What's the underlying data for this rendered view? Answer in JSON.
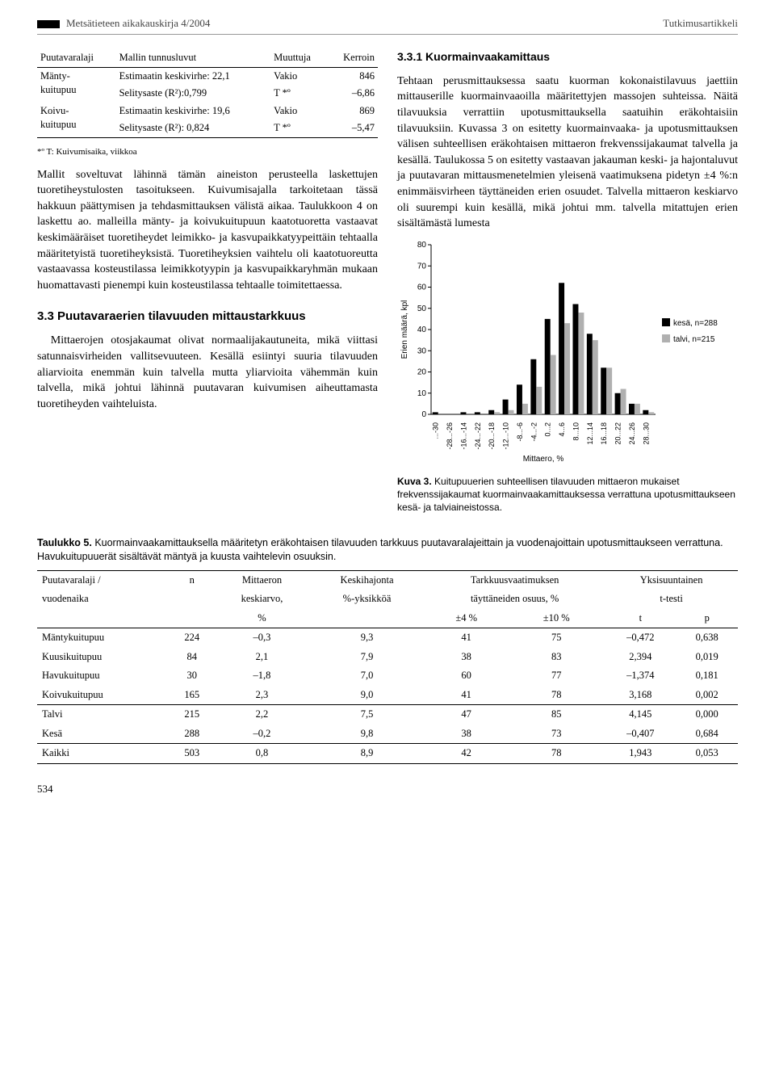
{
  "header": {
    "left": "Metsätieteen aikakauskirja 4/2004",
    "right": "Tutkimusartikkeli"
  },
  "miniTable": {
    "headers": [
      "Puutavaralaji",
      "Mallin tunnusluvut",
      "Muuttuja",
      "Kerroin"
    ],
    "rows": [
      {
        "c0": "Mänty-\nkuitupuu",
        "c1a": "Estimaatin keskivirhe: 22,1",
        "c1b": "Selitysaste (R²):0,799",
        "c2a": "Vakio",
        "c2b": "T *º",
        "c3a": "846",
        "c3b": "–6,86"
      },
      {
        "c0": "Koivu-\nkuitupuu",
        "c1a": "Estimaatin keskivirhe: 19,6",
        "c1b": "Selitysaste (R²): 0,824",
        "c2a": "Vakio",
        "c2b": "T *º",
        "c3a": "869",
        "c3b": "–5,47"
      }
    ],
    "footnote": "*º T: Kuivumisaika, viikkoa"
  },
  "left": {
    "p1": "Mallit soveltuvat lähinnä tämän aineiston perusteella laskettujen tuoretiheystulosten tasoitukseen. Kuivumisajalla tarkoitetaan tässä hakkuun päättymisen ja tehdasmittauksen välistä aikaa. Taulukkoon 4 on laskettu ao. malleilla mänty- ja koivukuitupuun kaatotuoretta vastaavat keskimääräiset tuoretiheydet leimikko- ja kasvupaikkatyypeittäin tehtaalla määritetyistä tuoretiheyksistä. Tuoretiheyksien vaihtelu oli kaatotuoreutta vastaavassa kosteustilassa leimikkotyypin ja kasvupaikkaryhmän mukaan huomattavasti pienempi kuin kosteustilassa tehtaalle toimitettaessa.",
    "h3": "3.3 Puutavaraerien tilavuuden mittaustarkkuus",
    "p2": "Mittaerojen otosjakaumat olivat normaalijakautuneita, mikä viittasi satunnaisvirheiden vallitsevuuteen. Kesällä esiintyi suuria tilavuuden aliarvioita enemmän kuin talvella mutta yliarvioita vähemmän kuin talvella, mikä johtui lähinnä puutavaran kuivumisen aiheuttamasta tuoretiheyden vaihteluista."
  },
  "right": {
    "h4": "3.3.1 Kuormainvaakamittaus",
    "p1": "Tehtaan perusmittauksessa saatu kuorman kokonaistilavuus jaettiin mittauserille kuormainvaaoilla määritettyjen massojen suhteissa. Näitä tilavuuksia verrattiin upotusmittauksella saatuihin eräkohtaisiin tilavuuksiin. Kuvassa 3 on esitetty kuormainvaaka- ja upotusmittauksen välisen suhteellisen eräkohtaisen mittaeron frekvenssijakaumat talvella ja kesällä. Taulukossa 5 on esitetty vastaavan jakauman keski- ja hajontaluvut ja puutavaran mittausmenetelmien yleisenä vaatimuksena pidetyn ±4 %:n enimmäisvirheen täyttäneiden erien osuudet. Talvella mittaeron keskiarvo oli suurempi kuin kesällä, mikä johtui mm. talvella mitattujen erien sisältämästä lumesta"
  },
  "chart": {
    "type": "grouped-bar-histogram",
    "ylabel": "Erien määrä, kpl",
    "xlabel": "Mittaero, %",
    "ylim": [
      0,
      80
    ],
    "ytick_step": 10,
    "categories": [
      "...-30",
      "-28...-26",
      "-16...-14",
      "-24...-22",
      "-20...-18",
      "-12...-10",
      "-8...-6",
      "-4...-2",
      "0...2",
      "4...6",
      "8...10",
      "12...14",
      "16...18",
      "20...22",
      "24...26",
      "28...30"
    ],
    "series": [
      {
        "name": "kesä, n=288",
        "color": "#000000",
        "values": [
          1,
          0,
          1,
          1,
          2,
          7,
          14,
          26,
          45,
          62,
          52,
          38,
          22,
          10,
          5,
          2
        ]
      },
      {
        "name": "talvi, n=215",
        "color": "#b0b0b0",
        "values": [
          0,
          0,
          0,
          0,
          1,
          2,
          5,
          13,
          28,
          43,
          48,
          35,
          22,
          12,
          5,
          1
        ]
      }
    ],
    "background_color": "#ffffff",
    "axis_color": "#000000",
    "label_fontsize": 10,
    "bar_group_width": 0.8
  },
  "chartCaption": {
    "bold": "Kuva 3.",
    "text": " Kuitupuuerien suhteellisen tilavuuden mittaeron mukaiset frekvenssijakaumat kuormainvaakamittauksessa verrattuna upotusmittaukseen kesä- ja talviaineistossa."
  },
  "table5": {
    "captionBold": "Taulukko 5.",
    "caption": " Kuormainvaakamittauksella määritetyn eräkohtaisen tilavuuden tarkkuus puutavaralajeittain ja vuodenajoittain upotusmittaukseen verrattuna. Havukuitupuuerät sisältävät mäntyä ja kuusta vaihtelevin osuuksin.",
    "head1": [
      "Puutavaralaji /",
      "n",
      "Mittaeron",
      "Keskihajonta",
      "Tarkkuusvaatimuksen",
      "",
      "Yksisuuntainen",
      ""
    ],
    "head2": [
      "vuodenaika",
      "",
      "keskiarvo,",
      "%-yksikköä",
      "täyttäneiden osuus, %",
      "",
      "t-testi",
      ""
    ],
    "head3": [
      "",
      "",
      "%",
      "",
      "±4 %",
      "±10 %",
      "t",
      "p"
    ],
    "rows": [
      [
        "Mäntykuitupuu",
        "224",
        "–0,3",
        "9,3",
        "41",
        "75",
        "–0,472",
        "0,638"
      ],
      [
        "Kuusikuitupuu",
        "84",
        "2,1",
        "7,9",
        "38",
        "83",
        "2,394",
        "0,019"
      ],
      [
        "Havukuitupuu",
        "30",
        "–1,8",
        "7,0",
        "60",
        "77",
        "–1,374",
        "0,181"
      ],
      [
        "Koivukuitupuu",
        "165",
        "2,3",
        "9,0",
        "41",
        "78",
        "3,168",
        "0,002"
      ]
    ],
    "rows2": [
      [
        "Talvi",
        "215",
        "2,2",
        "7,5",
        "47",
        "85",
        "4,145",
        "0,000"
      ],
      [
        "Kesä",
        "288",
        "–0,2",
        "9,8",
        "38",
        "73",
        "–0,407",
        "0,684"
      ]
    ],
    "rows3": [
      [
        "Kaikki",
        "503",
        "0,8",
        "8,9",
        "42",
        "78",
        "1,943",
        "0,053"
      ]
    ]
  },
  "pageNum": "534"
}
